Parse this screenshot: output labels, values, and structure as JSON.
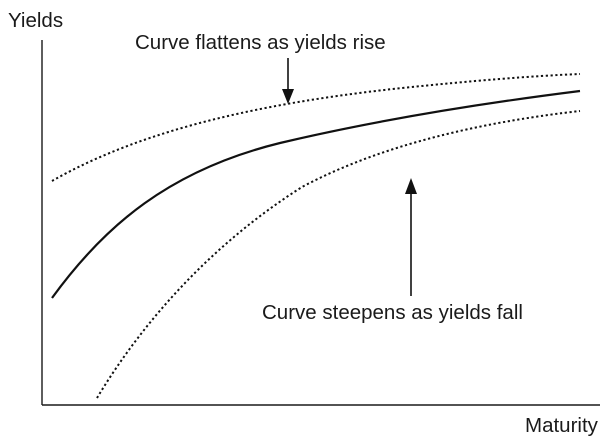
{
  "axes": {
    "y_label": "Yields",
    "x_label": "Maturity"
  },
  "annotations": {
    "top": "Curve flattens as yields rise",
    "bottom": "Curve steepens as yields fall"
  }
}
